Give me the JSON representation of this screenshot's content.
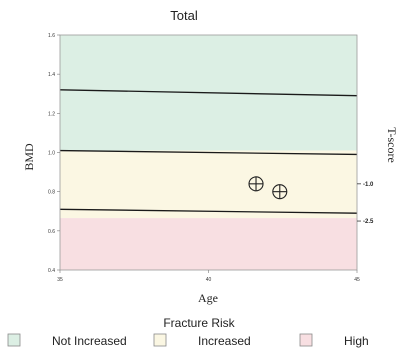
{
  "chart_data": {
    "type": "scatter",
    "title": "Total",
    "xlabel": "Age",
    "ylabel": "BMD",
    "y2label": "T-score",
    "xlim": [
      35,
      45
    ],
    "ylim": [
      0.4,
      1.6
    ],
    "x_ticks": [
      35,
      40,
      45
    ],
    "y_ticks": [
      0.4,
      0.6,
      0.8,
      1.0,
      1.2,
      1.4,
      1.6
    ],
    "y_tick_labels": [
      "0.4",
      "0.6",
      "0.8",
      "1.0",
      "1.2",
      "1.4",
      "1.6"
    ],
    "bands": [
      {
        "name": "Not Increased",
        "from": 1.01,
        "to": 1.6,
        "color": "#dcefe4"
      },
      {
        "name": "Increased",
        "from": 0.665,
        "to": 1.01,
        "color": "#fbf7e3"
      },
      {
        "name": "High",
        "from": 0.4,
        "to": 0.665,
        "color": "#f8dfe2"
      }
    ],
    "reference_lines": [
      {
        "y_start": 1.32,
        "y_end": 1.29
      },
      {
        "y_start": 1.01,
        "y_end": 0.99
      },
      {
        "y_start": 0.71,
        "y_end": 0.69
      }
    ],
    "t_score_marks": [
      {
        "label": "-1.0",
        "y": 0.84
      },
      {
        "label": "-2.5",
        "y": 0.65
      }
    ],
    "points": [
      {
        "x": 41.6,
        "y": 0.84
      },
      {
        "x": 42.4,
        "y": 0.8
      }
    ],
    "legend_title": "Fracture Risk",
    "legend": [
      {
        "label": "Not Increased",
        "color": "#dcefe4"
      },
      {
        "label": "Increased",
        "color": "#fbf7e3"
      },
      {
        "label": "High",
        "color": "#f8dfe2"
      }
    ]
  }
}
